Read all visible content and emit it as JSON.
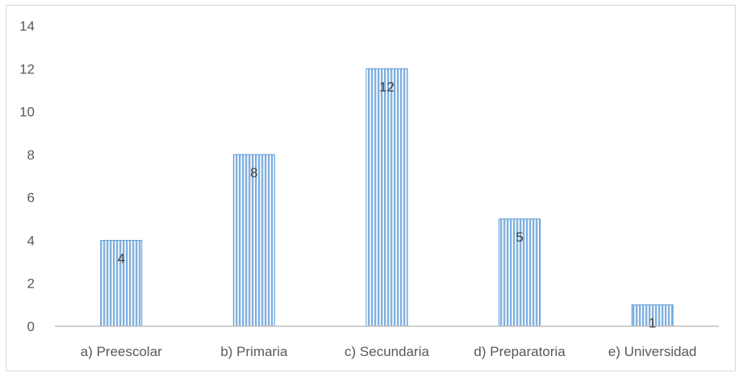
{
  "chart_data": {
    "type": "bar",
    "categories": [
      "a) Preescolar",
      "b) Primaria",
      "c) Secundaria",
      "d) Preparatoria",
      "e) Universidad"
    ],
    "values": [
      4,
      8,
      12,
      5,
      1
    ],
    "data_labels": [
      "4",
      "8",
      "12",
      "5",
      "1"
    ],
    "ylim": [
      0,
      14
    ],
    "yticks": [
      0,
      2,
      4,
      6,
      8,
      10,
      12,
      14
    ],
    "grid": false,
    "legend": "none",
    "bar_color": "#9dc3e6",
    "bar_stripe_color": "#5b9bd5"
  }
}
